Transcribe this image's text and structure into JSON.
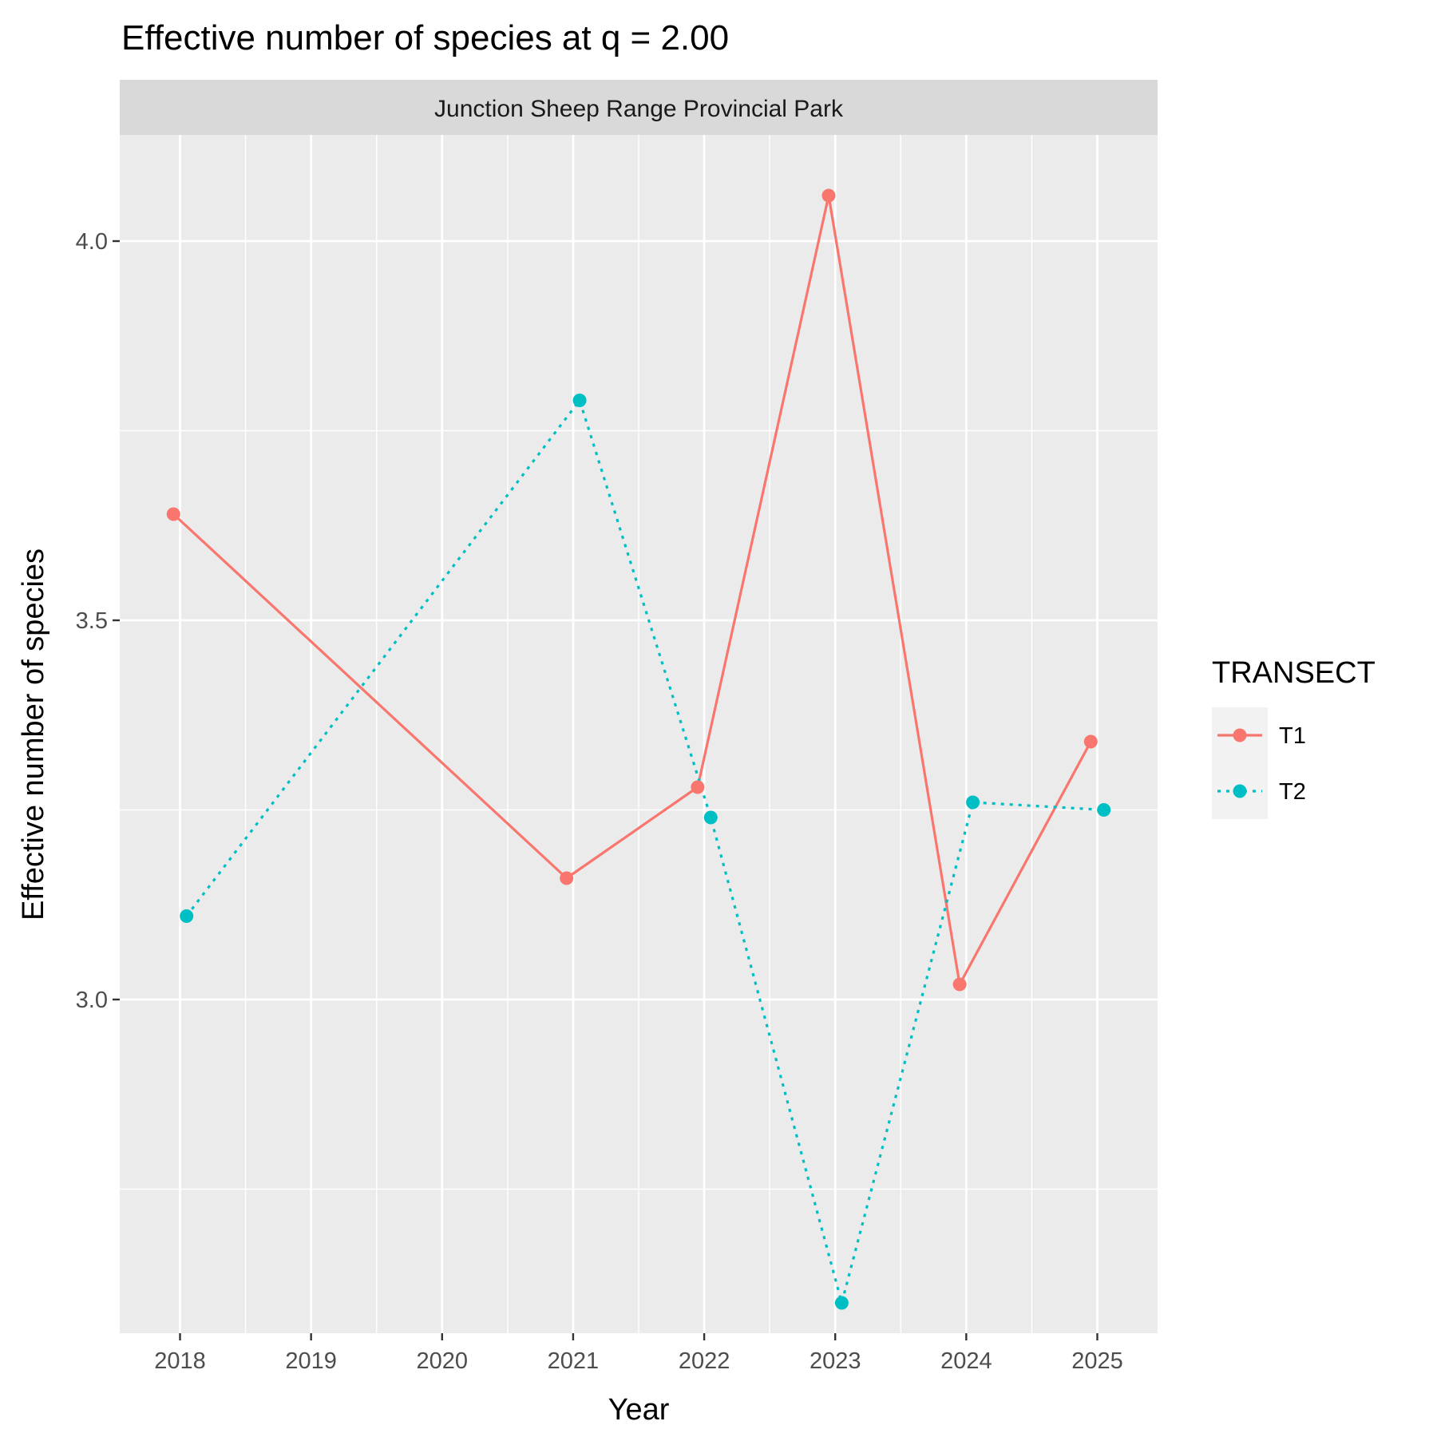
{
  "chart_data": {
    "type": "line",
    "title": "Effective number of species at q = 2.00",
    "facet_label": "Junction Sheep Range Provincial Park",
    "xlabel": "Year",
    "ylabel": "Effective number of species",
    "x_ticks": [
      "2018",
      "2019",
      "2020",
      "2021",
      "2022",
      "2023",
      "2024",
      "2025"
    ],
    "y_ticks": [
      "3.0",
      "3.5",
      "4.0"
    ],
    "xlim": [
      2017.54,
      2025.46
    ],
    "ylim": [
      2.56,
      4.14
    ],
    "grid": true,
    "panel_background": "#EBEBEB",
    "strip_background": "#D9D9D9",
    "legend": {
      "title": "TRANSECT",
      "position": "right",
      "entries": [
        {
          "label": "T1",
          "color": "#F8766D",
          "linetype": "solid"
        },
        {
          "label": "T2",
          "color": "#00BFC4",
          "linetype": "dotted"
        }
      ]
    },
    "series": [
      {
        "name": "T1",
        "color": "#F8766D",
        "linetype": "solid",
        "x": [
          2018,
          2021,
          2022,
          2023,
          2024,
          2025
        ],
        "values": [
          3.64,
          3.16,
          3.28,
          4.06,
          3.02,
          3.34
        ]
      },
      {
        "name": "T2",
        "color": "#00BFC4",
        "linetype": "dotted",
        "x": [
          2018,
          2021,
          2022,
          2023,
          2024,
          2025
        ],
        "values": [
          3.11,
          3.79,
          3.24,
          2.6,
          3.26,
          3.25
        ]
      }
    ]
  }
}
